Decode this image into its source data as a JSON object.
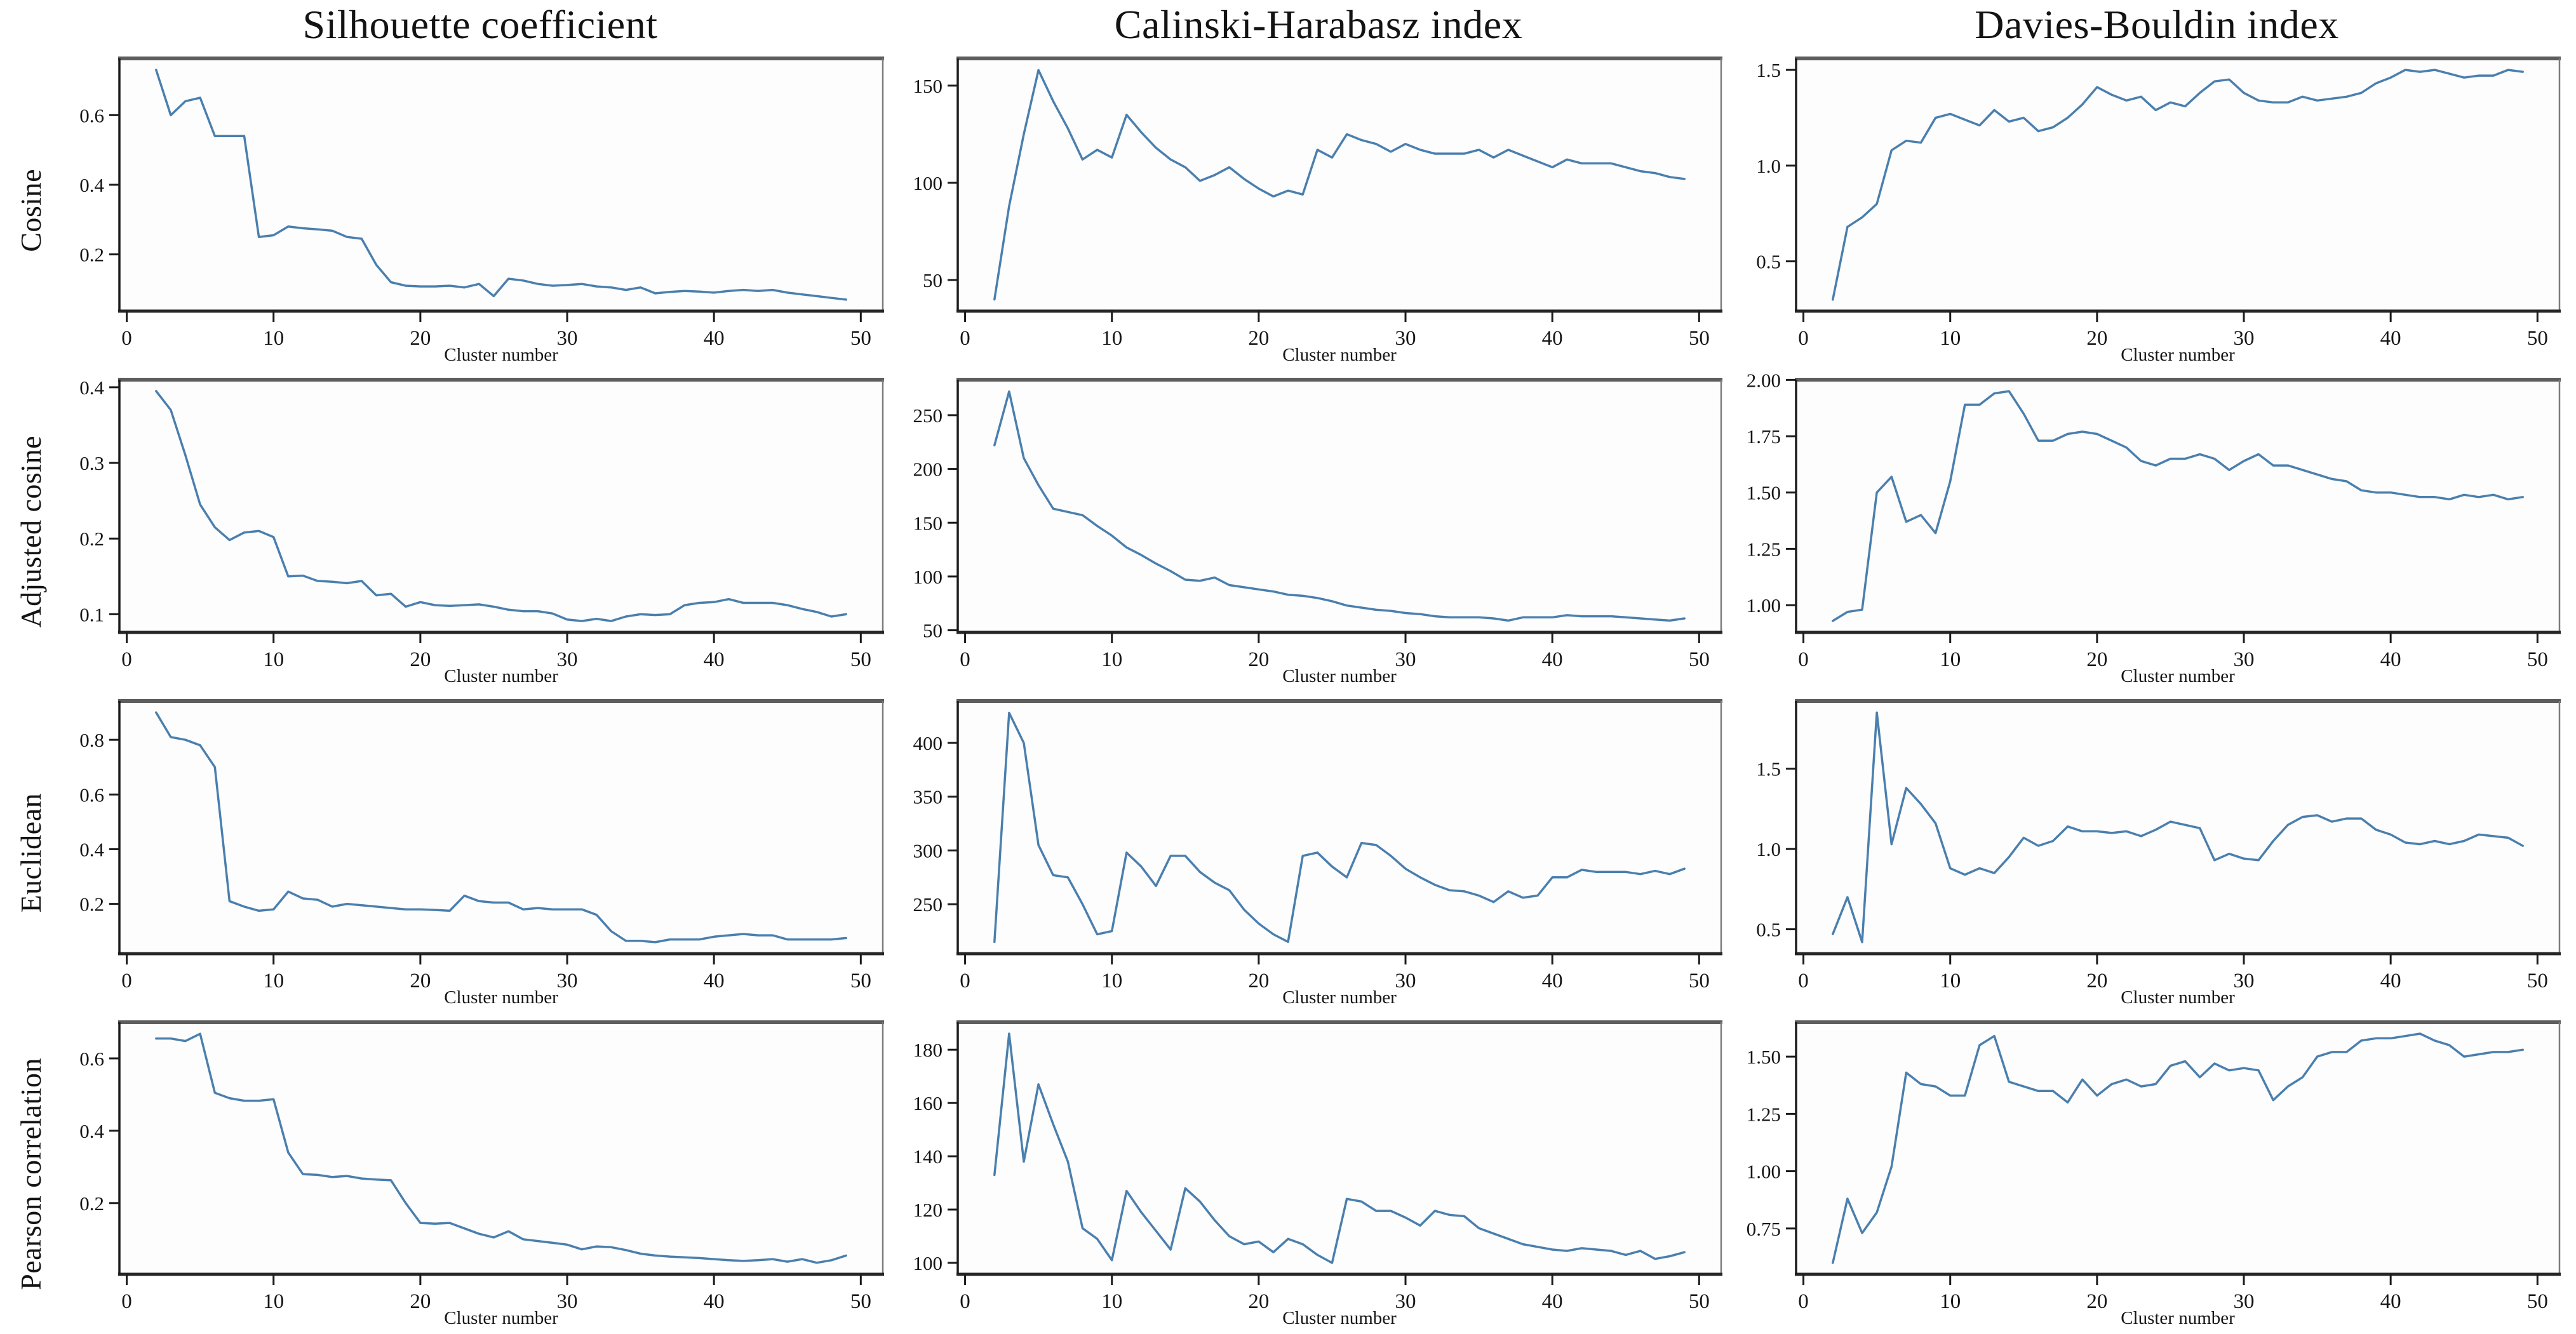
{
  "figure": {
    "columns": [
      "Silhouette coefficient",
      "Calinski-Harabasz index",
      "Davies-Bouldin index"
    ],
    "rows": [
      "Cosine",
      "Adjusted cosine",
      "Euclidean",
      "Pearson correlation"
    ],
    "xlabel": "Cluster number",
    "line_color": "#4a7fae",
    "x_tick_labels": [
      "0",
      "10",
      "20",
      "30",
      "40",
      "50"
    ]
  },
  "chart_data": [
    {
      "type": "line",
      "row": "Cosine",
      "column": "Silhouette coefficient",
      "xlabel": "Cluster number",
      "x_start": 2,
      "x_step": 1,
      "xlim": [
        -0.5,
        51.5
      ],
      "x_ticks": [
        0,
        10,
        20,
        30,
        40,
        50
      ],
      "x_tick_labels": [
        "0",
        "10",
        "20",
        "30",
        "40",
        "50"
      ],
      "y_ticks": [
        0.2,
        0.4,
        0.6
      ],
      "y_tick_labels": [
        "0.2",
        "0.4",
        "0.6"
      ],
      "ylim": [
        0.037,
        0.763
      ],
      "values": [
        0.73,
        0.6,
        0.64,
        0.65,
        0.54,
        0.54,
        0.54,
        0.25,
        0.255,
        0.28,
        0.275,
        0.272,
        0.268,
        0.25,
        0.245,
        0.17,
        0.12,
        0.11,
        0.108,
        0.108,
        0.11,
        0.105,
        0.115,
        0.08,
        0.13,
        0.125,
        0.115,
        0.11,
        0.112,
        0.115,
        0.108,
        0.105,
        0.098,
        0.105,
        0.088,
        0.092,
        0.095,
        0.093,
        0.09,
        0.095,
        0.098,
        0.095,
        0.098,
        0.09,
        0.085,
        0.08,
        0.075,
        0.07
      ]
    },
    {
      "type": "line",
      "row": "Cosine",
      "column": "Calinski-Harabasz index",
      "xlabel": "Cluster number",
      "x_start": 2,
      "x_step": 1,
      "xlim": [
        -0.5,
        51.5
      ],
      "x_ticks": [
        0,
        10,
        20,
        30,
        40,
        50
      ],
      "x_tick_labels": [
        "0",
        "10",
        "20",
        "30",
        "40",
        "50"
      ],
      "y_ticks": [
        50,
        100,
        150
      ],
      "y_tick_labels": [
        "50",
        "100",
        "150"
      ],
      "ylim": [
        34,
        164
      ],
      "values": [
        40,
        88,
        125,
        158,
        142,
        128,
        112,
        117,
        113,
        135,
        126,
        118,
        112,
        108,
        101,
        104,
        108,
        102,
        97,
        93,
        96,
        94,
        117,
        113,
        125,
        122,
        120,
        116,
        120,
        117,
        115,
        115,
        115,
        117,
        113,
        117,
        114,
        111,
        108,
        112,
        110,
        110,
        110,
        108,
        106,
        105,
        103,
        102
      ]
    },
    {
      "type": "line",
      "row": "Cosine",
      "column": "Davies-Bouldin index",
      "xlabel": "Cluster number",
      "x_start": 2,
      "x_step": 1,
      "xlim": [
        -0.5,
        51.5
      ],
      "x_ticks": [
        0,
        10,
        20,
        30,
        40,
        50
      ],
      "x_tick_labels": [
        "0",
        "10",
        "20",
        "30",
        "40",
        "50"
      ],
      "y_ticks": [
        0.5,
        1.0,
        1.5
      ],
      "y_tick_labels": [
        "0.5",
        "1.0",
        "1.5"
      ],
      "ylim": [
        0.24,
        1.56
      ],
      "values": [
        0.3,
        0.68,
        0.73,
        0.8,
        1.08,
        1.13,
        1.12,
        1.25,
        1.27,
        1.24,
        1.21,
        1.29,
        1.23,
        1.25,
        1.18,
        1.2,
        1.25,
        1.32,
        1.41,
        1.37,
        1.34,
        1.36,
        1.29,
        1.33,
        1.31,
        1.38,
        1.44,
        1.45,
        1.38,
        1.34,
        1.33,
        1.33,
        1.36,
        1.34,
        1.35,
        1.36,
        1.38,
        1.43,
        1.46,
        1.5,
        1.49,
        1.5,
        1.48,
        1.46,
        1.47,
        1.47,
        1.5,
        1.49
      ]
    },
    {
      "type": "line",
      "row": "Adjusted cosine",
      "column": "Silhouette coefficient",
      "xlabel": "Cluster number",
      "x_start": 2,
      "x_step": 1,
      "xlim": [
        -0.5,
        51.5
      ],
      "x_ticks": [
        0,
        10,
        20,
        30,
        40,
        50
      ],
      "x_tick_labels": [
        "0",
        "10",
        "20",
        "30",
        "40",
        "50"
      ],
      "y_ticks": [
        0.1,
        0.2,
        0.3,
        0.4
      ],
      "y_tick_labels": [
        "0.1",
        "0.2",
        "0.3",
        "0.4"
      ],
      "ylim": [
        0.076,
        0.41
      ],
      "values": [
        0.395,
        0.37,
        0.31,
        0.245,
        0.215,
        0.198,
        0.208,
        0.21,
        0.202,
        0.15,
        0.151,
        0.144,
        0.143,
        0.141,
        0.144,
        0.125,
        0.127,
        0.11,
        0.116,
        0.112,
        0.111,
        0.112,
        0.113,
        0.11,
        0.106,
        0.104,
        0.104,
        0.101,
        0.093,
        0.091,
        0.094,
        0.091,
        0.097,
        0.1,
        0.099,
        0.1,
        0.112,
        0.115,
        0.116,
        0.12,
        0.115,
        0.115,
        0.115,
        0.112,
        0.107,
        0.103,
        0.097,
        0.1
      ]
    },
    {
      "type": "line",
      "row": "Adjusted cosine",
      "column": "Calinski-Harabasz index",
      "xlabel": "Cluster number",
      "x_start": 2,
      "x_step": 1,
      "xlim": [
        -0.5,
        51.5
      ],
      "x_ticks": [
        0,
        10,
        20,
        30,
        40,
        50
      ],
      "x_tick_labels": [
        "0",
        "10",
        "20",
        "30",
        "40",
        "50"
      ],
      "y_ticks": [
        50,
        100,
        150,
        200,
        250
      ],
      "y_tick_labels": [
        "50",
        "100",
        "150",
        "200",
        "250"
      ],
      "ylim": [
        48,
        283
      ],
      "values": [
        222,
        272,
        210,
        185,
        163,
        160,
        157,
        147,
        138,
        127,
        120,
        112,
        105,
        97,
        96,
        99,
        92,
        90,
        88,
        86,
        83,
        82,
        80,
        77,
        73,
        71,
        69,
        68,
        66,
        65,
        63,
        62,
        62,
        62,
        61,
        59,
        62,
        62,
        62,
        64,
        63,
        63,
        63,
        62,
        61,
        60,
        59,
        61
      ]
    },
    {
      "type": "line",
      "row": "Adjusted cosine",
      "column": "Davies-Bouldin index",
      "xlabel": "Cluster number",
      "x_start": 2,
      "x_step": 1,
      "xlim": [
        -0.5,
        51.5
      ],
      "x_ticks": [
        0,
        10,
        20,
        30,
        40,
        50
      ],
      "x_tick_labels": [
        "0",
        "10",
        "20",
        "30",
        "40",
        "50"
      ],
      "y_ticks": [
        1.0,
        1.25,
        1.5,
        1.75,
        2.0
      ],
      "y_tick_labels": [
        "1.00",
        "1.25",
        "1.50",
        "1.75",
        "2.00"
      ],
      "ylim": [
        0.879,
        2.001
      ],
      "values": [
        0.93,
        0.97,
        0.98,
        1.5,
        1.57,
        1.37,
        1.4,
        1.32,
        1.55,
        1.89,
        1.89,
        1.94,
        1.95,
        1.85,
        1.73,
        1.73,
        1.76,
        1.77,
        1.76,
        1.73,
        1.7,
        1.64,
        1.62,
        1.65,
        1.65,
        1.67,
        1.65,
        1.6,
        1.64,
        1.67,
        1.62,
        1.62,
        1.6,
        1.58,
        1.56,
        1.55,
        1.51,
        1.5,
        1.5,
        1.49,
        1.48,
        1.48,
        1.47,
        1.49,
        1.48,
        1.49,
        1.47,
        1.48
      ]
    },
    {
      "type": "line",
      "row": "Euclidean",
      "column": "Silhouette coefficient",
      "xlabel": "Cluster number",
      "x_start": 2,
      "x_step": 1,
      "xlim": [
        -0.5,
        51.5
      ],
      "x_ticks": [
        0,
        10,
        20,
        30,
        40,
        50
      ],
      "x_tick_labels": [
        "0",
        "10",
        "20",
        "30",
        "40",
        "50"
      ],
      "y_ticks": [
        0.2,
        0.4,
        0.6,
        0.8
      ],
      "y_tick_labels": [
        "0.2",
        "0.4",
        "0.6",
        "0.8"
      ],
      "ylim": [
        0.018,
        0.942
      ],
      "values": [
        0.9,
        0.81,
        0.8,
        0.78,
        0.7,
        0.21,
        0.19,
        0.175,
        0.18,
        0.245,
        0.22,
        0.215,
        0.19,
        0.2,
        0.195,
        0.19,
        0.185,
        0.18,
        0.18,
        0.178,
        0.175,
        0.23,
        0.21,
        0.205,
        0.205,
        0.18,
        0.185,
        0.18,
        0.18,
        0.18,
        0.16,
        0.1,
        0.065,
        0.065,
        0.06,
        0.07,
        0.07,
        0.07,
        0.08,
        0.085,
        0.09,
        0.085,
        0.085,
        0.07,
        0.07,
        0.07,
        0.07,
        0.075
      ]
    },
    {
      "type": "line",
      "row": "Euclidean",
      "column": "Calinski-Harabasz index",
      "xlabel": "Cluster number",
      "x_start": 2,
      "x_step": 1,
      "xlim": [
        -0.5,
        51.5
      ],
      "x_ticks": [
        0,
        10,
        20,
        30,
        40,
        50
      ],
      "x_tick_labels": [
        "0",
        "10",
        "20",
        "30",
        "40",
        "50"
      ],
      "y_ticks": [
        250,
        300,
        350,
        400
      ],
      "y_tick_labels": [
        "250",
        "300",
        "350",
        "400"
      ],
      "ylim": [
        204,
        439
      ],
      "values": [
        215,
        428,
        400,
        305,
        277,
        275,
        250,
        222,
        225,
        298,
        285,
        267,
        295,
        295,
        280,
        270,
        263,
        245,
        232,
        222,
        215,
        295,
        298,
        285,
        275,
        307,
        305,
        295,
        283,
        275,
        268,
        263,
        262,
        258,
        252,
        262,
        256,
        258,
        275,
        275,
        282,
        280,
        280,
        280,
        278,
        281,
        278,
        283
      ]
    },
    {
      "type": "line",
      "row": "Euclidean",
      "column": "Davies-Bouldin index",
      "xlabel": "Cluster number",
      "x_start": 2,
      "x_step": 1,
      "xlim": [
        -0.5,
        51.5
      ],
      "x_ticks": [
        0,
        10,
        20,
        30,
        40,
        50
      ],
      "x_tick_labels": [
        "0",
        "10",
        "20",
        "30",
        "40",
        "50"
      ],
      "y_ticks": [
        0.5,
        1.0,
        1.5
      ],
      "y_tick_labels": [
        "0.5",
        "1.0",
        "1.5"
      ],
      "ylim": [
        0.348,
        1.922
      ],
      "values": [
        0.47,
        0.7,
        0.42,
        1.85,
        1.03,
        1.38,
        1.28,
        1.16,
        0.88,
        0.84,
        0.88,
        0.85,
        0.95,
        1.07,
        1.02,
        1.05,
        1.14,
        1.11,
        1.11,
        1.1,
        1.11,
        1.08,
        1.12,
        1.17,
        1.15,
        1.13,
        0.93,
        0.97,
        0.94,
        0.93,
        1.05,
        1.15,
        1.2,
        1.21,
        1.17,
        1.19,
        1.19,
        1.12,
        1.09,
        1.04,
        1.03,
        1.05,
        1.03,
        1.05,
        1.09,
        1.08,
        1.07,
        1.02
      ]
    },
    {
      "type": "line",
      "row": "Pearson correlation",
      "column": "Silhouette coefficient",
      "xlabel": "Cluster number",
      "x_start": 2,
      "x_step": 1,
      "xlim": [
        -0.5,
        51.5
      ],
      "x_ticks": [
        0,
        10,
        20,
        30,
        40,
        50
      ],
      "x_tick_labels": [
        "0",
        "10",
        "20",
        "30",
        "40",
        "50"
      ],
      "y_ticks": [
        0.2,
        0.4,
        0.6
      ],
      "y_tick_labels": [
        "0.2",
        "0.4",
        "0.6"
      ],
      "ylim": [
        0.003,
        0.7
      ],
      "values": [
        0.655,
        0.655,
        0.648,
        0.668,
        0.505,
        0.49,
        0.483,
        0.483,
        0.487,
        0.34,
        0.28,
        0.278,
        0.272,
        0.275,
        0.268,
        0.265,
        0.263,
        0.2,
        0.145,
        0.143,
        0.145,
        0.13,
        0.115,
        0.105,
        0.122,
        0.1,
        0.095,
        0.09,
        0.085,
        0.072,
        0.08,
        0.078,
        0.07,
        0.06,
        0.055,
        0.052,
        0.05,
        0.048,
        0.045,
        0.042,
        0.04,
        0.042,
        0.045,
        0.038,
        0.045,
        0.035,
        0.042,
        0.055
      ]
    },
    {
      "type": "line",
      "row": "Pearson correlation",
      "column": "Calinski-Harabasz index",
      "xlabel": "Cluster number",
      "x_start": 2,
      "x_step": 1,
      "xlim": [
        -0.5,
        51.5
      ],
      "x_ticks": [
        0,
        10,
        20,
        30,
        40,
        50
      ],
      "x_tick_labels": [
        "0",
        "10",
        "20",
        "30",
        "40",
        "50"
      ],
      "y_ticks": [
        100,
        120,
        140,
        160,
        180
      ],
      "y_tick_labels": [
        "100",
        "120",
        "140",
        "160",
        "180"
      ],
      "ylim": [
        95.7,
        190.3
      ],
      "values": [
        133,
        186,
        138,
        167,
        152,
        138,
        113,
        109,
        101,
        127,
        119,
        112,
        105,
        128,
        123,
        116,
        110,
        107,
        108,
        104,
        109,
        107,
        103,
        100,
        124,
        123,
        119.5,
        119.5,
        117,
        114,
        119.5,
        118,
        117.5,
        113,
        111,
        109,
        107,
        106,
        105,
        104.5,
        105.5,
        105,
        104.5,
        103,
        104.5,
        101.5,
        102.5,
        104
      ]
    },
    {
      "type": "line",
      "row": "Pearson correlation",
      "column": "Davies-Bouldin index",
      "xlabel": "Cluster number",
      "x_start": 2,
      "x_step": 1,
      "xlim": [
        -0.5,
        51.5
      ],
      "x_ticks": [
        0,
        10,
        20,
        30,
        40,
        50
      ],
      "x_tick_labels": [
        "0",
        "10",
        "20",
        "30",
        "40",
        "50"
      ],
      "y_ticks": [
        0.75,
        1.0,
        1.25,
        1.5
      ],
      "y_tick_labels": [
        "0.75",
        "1.00",
        "1.25",
        "1.50"
      ],
      "ylim": [
        0.55,
        1.65
      ],
      "values": [
        0.6,
        0.88,
        0.73,
        0.82,
        1.02,
        1.43,
        1.38,
        1.37,
        1.33,
        1.33,
        1.55,
        1.59,
        1.39,
        1.37,
        1.35,
        1.35,
        1.3,
        1.4,
        1.33,
        1.38,
        1.4,
        1.37,
        1.38,
        1.46,
        1.48,
        1.41,
        1.47,
        1.44,
        1.45,
        1.44,
        1.31,
        1.37,
        1.41,
        1.5,
        1.52,
        1.52,
        1.57,
        1.58,
        1.58,
        1.59,
        1.6,
        1.57,
        1.55,
        1.5,
        1.51,
        1.52,
        1.52,
        1.53
      ]
    }
  ]
}
